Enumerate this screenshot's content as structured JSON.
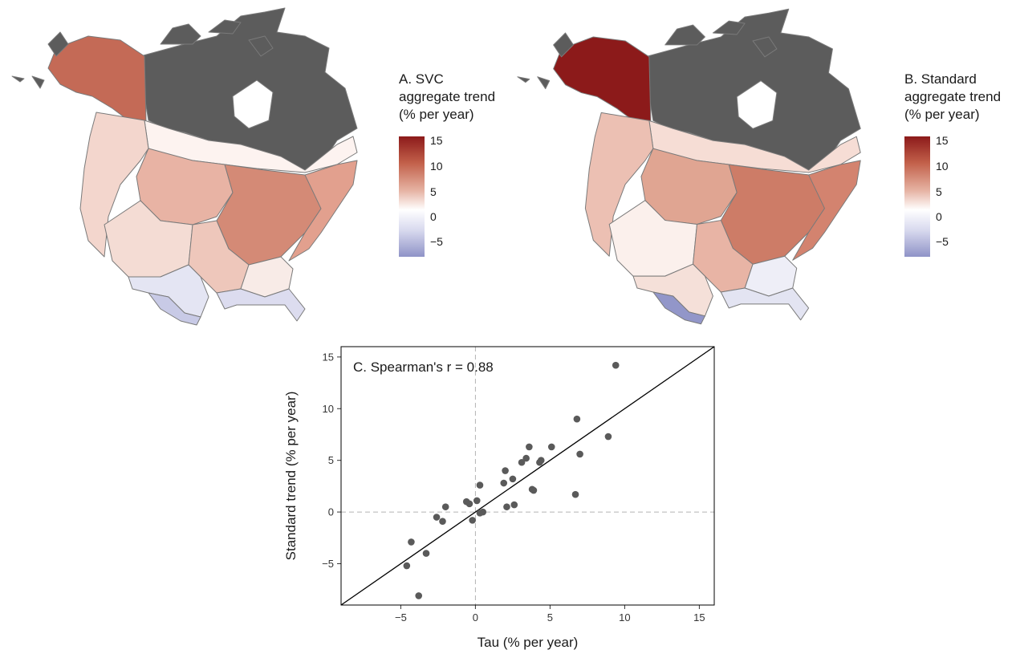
{
  "colors": {
    "land_outside": "#5c5c5c",
    "boundary": "#7a7a7a",
    "positive_max": "#8c1a1a",
    "neutral": "#ffffff",
    "negative_min": "#8f93c7",
    "points": "#5a5a5a",
    "reference_line": "#000000",
    "dashed_zero": "#b3b3b3"
  },
  "panel_a": {
    "legend_title_line1": "A. SVC",
    "legend_title_line2": "aggregate trend",
    "legend_title_line3": "(% per year)",
    "legend_ticks": [
      "15",
      "10",
      "5",
      "0",
      "−5"
    ]
  },
  "panel_b": {
    "legend_title_line1": "B. Standard",
    "legend_title_line2": "aggregate trend",
    "legend_title_line3": "(% per year)",
    "legend_ticks": [
      "15",
      "10",
      "5",
      "0",
      "−5"
    ]
  },
  "chart_data": {
    "type": "scatter",
    "title": "C. Spearman's r = 0.88",
    "xlabel": "Tau (% per year)",
    "ylabel": "Standard trend (% per year)",
    "xlim": [
      -9,
      16
    ],
    "ylim": [
      -9,
      16
    ],
    "xticks": [
      -5,
      0,
      5,
      10,
      15
    ],
    "yticks": [
      -5,
      0,
      5,
      10,
      15
    ],
    "xtick_labels": [
      "−5",
      "0",
      "5",
      "10",
      "15"
    ],
    "ytick_labels": [
      "−5",
      "0",
      "5",
      "10",
      "15"
    ],
    "reference_line": "y = x",
    "dashed_lines": {
      "x": 0,
      "y": 0
    },
    "grid": false,
    "points": [
      {
        "x": 9.4,
        "y": 14.2
      },
      {
        "x": 6.8,
        "y": 9.0
      },
      {
        "x": 8.9,
        "y": 7.3
      },
      {
        "x": 7.0,
        "y": 5.6
      },
      {
        "x": 6.7,
        "y": 1.7
      },
      {
        "x": 5.1,
        "y": 6.3
      },
      {
        "x": 3.6,
        "y": 6.3
      },
      {
        "x": 3.4,
        "y": 5.2
      },
      {
        "x": 3.1,
        "y": 4.8
      },
      {
        "x": 4.4,
        "y": 5.0
      },
      {
        "x": 4.3,
        "y": 4.8
      },
      {
        "x": 2.0,
        "y": 4.0
      },
      {
        "x": 2.5,
        "y": 3.2
      },
      {
        "x": 1.9,
        "y": 2.8
      },
      {
        "x": 3.8,
        "y": 2.2
      },
      {
        "x": 3.9,
        "y": 2.1
      },
      {
        "x": 0.3,
        "y": 2.6
      },
      {
        "x": 2.6,
        "y": 0.7
      },
      {
        "x": 2.1,
        "y": 0.5
      },
      {
        "x": 0.1,
        "y": 1.1
      },
      {
        "x": -0.6,
        "y": 1.0
      },
      {
        "x": -0.4,
        "y": 0.8
      },
      {
        "x": -2.0,
        "y": 0.5
      },
      {
        "x": 0.5,
        "y": 0.0
      },
      {
        "x": 0.3,
        "y": -0.1
      },
      {
        "x": -0.2,
        "y": -0.8
      },
      {
        "x": -2.6,
        "y": -0.5
      },
      {
        "x": -2.2,
        "y": -0.9
      },
      {
        "x": -4.3,
        "y": -2.9
      },
      {
        "x": -3.3,
        "y": -4.0
      },
      {
        "x": -4.6,
        "y": -5.2
      },
      {
        "x": -3.8,
        "y": -8.1
      }
    ]
  }
}
